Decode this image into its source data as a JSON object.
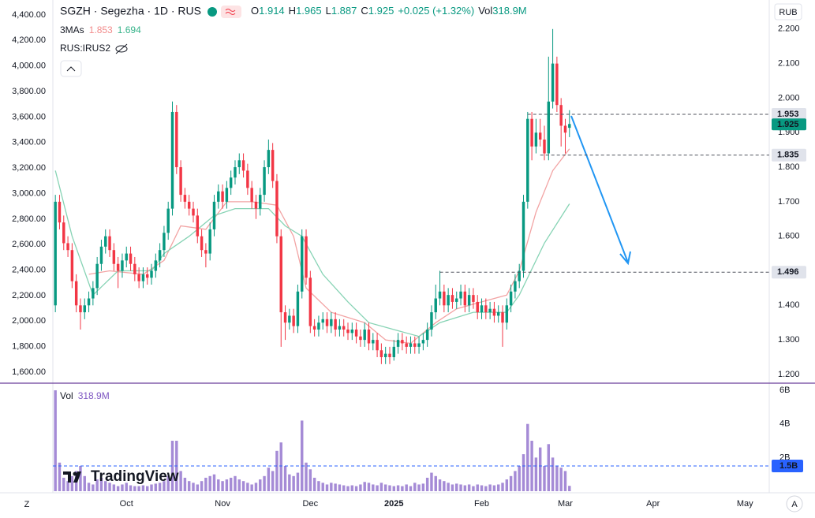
{
  "chart_data": {
    "type": "candlestick",
    "header": {
      "symbol": "SGZH · Segezha · 1D · RUS",
      "o": "O",
      "h": "H",
      "l": "L",
      "c": "C",
      "change": "+0.025 (+1.32%)",
      "vol": "Vol",
      "vol_value": "318.9M"
    },
    "indicators": {
      "ma_name": "3MAs",
      "compare": "RUS:IRUS2",
      "volume_name": "Vol",
      "volume_value": "318.9M"
    },
    "ui": {
      "currency": "RUB",
      "log": "Z",
      "auto": "A",
      "watermark": "TradingView"
    },
    "colors": {
      "up": "#089981",
      "down": "#f23645",
      "volume": "#a58bd6"
    },
    "grid": false,
    "xlim": [
      -0.6,
      170.8
    ],
    "xticks": [
      {
        "value": 17,
        "label": "Oct"
      },
      {
        "value": 40,
        "label": "Nov"
      },
      {
        "value": 61,
        "label": "Dec"
      },
      {
        "value": 81,
        "label": "2025"
      },
      {
        "value": 102,
        "label": "Feb"
      },
      {
        "value": 122,
        "label": "Mar"
      },
      {
        "value": 143,
        "label": "Apr"
      },
      {
        "value": 165,
        "label": "May"
      }
    ],
    "ylim": [
      1.177,
      2.284
    ],
    "yticks": [
      {
        "value": 2.2,
        "label": "2.200"
      },
      {
        "value": 2.1,
        "label": "2.100"
      },
      {
        "value": 2.0,
        "label": "2.000"
      },
      {
        "value": 1.9,
        "label": "1.900"
      },
      {
        "value": 1.8,
        "label": "1.800"
      },
      {
        "value": 1.7,
        "label": "1.700"
      },
      {
        "value": 1.6,
        "label": "1.600"
      },
      {
        "value": 1.5,
        "label": "1.500"
      },
      {
        "value": 1.4,
        "label": "1.400"
      },
      {
        "value": 1.3,
        "label": "1.300"
      },
      {
        "value": 1.2,
        "label": "1.200"
      }
    ],
    "y2lim": [
      1520,
      4517
    ],
    "y2ticks": [
      {
        "value": 4400,
        "label": "4,400.00"
      },
      {
        "value": 4200,
        "label": "4,200.00"
      },
      {
        "value": 4000,
        "label": "4,000.00"
      },
      {
        "value": 3800,
        "label": "3,800.00"
      },
      {
        "value": 3600,
        "label": "3,600.00"
      },
      {
        "value": 3400,
        "label": "3,400.00"
      },
      {
        "value": 3200,
        "label": "3,200.00"
      },
      {
        "value": 3000,
        "label": "3,000.00"
      },
      {
        "value": 2800,
        "label": "2,800.00"
      },
      {
        "value": 2600,
        "label": "2,600.00"
      },
      {
        "value": 2400,
        "label": "2,400.00"
      },
      {
        "value": 2200,
        "label": "2,200.00"
      },
      {
        "value": 2000,
        "label": "2,000.00"
      },
      {
        "value": 1800,
        "label": "1,800.00"
      },
      {
        "value": 1600,
        "label": "1,600.00"
      }
    ],
    "volume_ylim": [
      0,
      6330
    ],
    "volume_ticks": [
      {
        "value": 6000,
        "label": "6B"
      },
      {
        "value": 4000,
        "label": "4B"
      },
      {
        "value": 2000,
        "label": "2B"
      }
    ],
    "volume_level": {
      "value": 1500,
      "label": "1.5B"
    },
    "levels": [
      1.953,
      1.835,
      1.496
    ],
    "open": [
      1.4,
      1.7,
      1.64,
      1.58,
      1.56,
      1.47,
      1.4,
      1.38,
      1.4,
      1.42,
      1.45,
      1.52,
      1.57,
      1.6,
      1.56,
      1.52,
      1.5,
      1.53,
      1.55,
      1.52,
      1.49,
      1.47,
      1.49,
      1.48,
      1.5,
      1.53,
      1.56,
      1.61,
      1.68,
      1.96,
      1.8,
      1.72,
      1.7,
      1.68,
      1.66,
      1.6,
      1.56,
      1.55,
      1.62,
      1.7,
      1.73,
      1.7,
      1.74,
      1.77,
      1.8,
      1.82,
      1.79,
      1.74,
      1.7,
      1.68,
      1.72,
      1.8,
      1.85,
      1.76,
      1.6,
      1.38,
      1.35,
      1.37,
      1.34,
      1.44,
      1.6,
      1.48,
      1.34,
      1.33,
      1.35,
      1.36,
      1.34,
      1.36,
      1.33,
      1.34,
      1.33,
      1.32,
      1.33,
      1.31,
      1.3,
      1.33,
      1.29,
      1.3,
      1.27,
      1.25,
      1.26,
      1.25,
      1.28,
      1.3,
      1.29,
      1.28,
      1.29,
      1.28,
      1.29,
      1.3,
      1.33,
      1.38,
      1.42,
      1.44,
      1.4,
      1.43,
      1.41,
      1.42,
      1.44,
      1.4,
      1.43,
      1.41,
      1.38,
      1.4,
      1.38,
      1.39,
      1.37,
      1.38,
      1.35,
      1.4,
      1.44,
      1.47,
      1.5,
      1.7,
      1.94,
      1.86,
      1.9,
      1.88,
      1.84,
      1.99,
      2.1,
      1.98,
      1.92,
      1.914
    ],
    "high": [
      1.72,
      1.72,
      1.66,
      1.6,
      1.58,
      1.49,
      1.42,
      1.42,
      1.44,
      1.47,
      1.54,
      1.59,
      1.62,
      1.62,
      1.58,
      1.54,
      1.55,
      1.57,
      1.57,
      1.54,
      1.51,
      1.51,
      1.51,
      1.52,
      1.55,
      1.58,
      1.63,
      1.7,
      1.99,
      1.98,
      1.82,
      1.74,
      1.72,
      1.7,
      1.68,
      1.62,
      1.58,
      1.64,
      1.72,
      1.75,
      1.75,
      1.76,
      1.79,
      1.82,
      1.84,
      1.84,
      1.81,
      1.76,
      1.72,
      1.74,
      1.82,
      1.88,
      1.87,
      1.78,
      1.62,
      1.4,
      1.39,
      1.39,
      1.46,
      1.62,
      1.62,
      1.5,
      1.36,
      1.37,
      1.38,
      1.38,
      1.38,
      1.38,
      1.36,
      1.36,
      1.35,
      1.35,
      1.35,
      1.33,
      1.35,
      1.35,
      1.32,
      1.32,
      1.29,
      1.28,
      1.28,
      1.3,
      1.32,
      1.32,
      1.31,
      1.31,
      1.31,
      1.31,
      1.32,
      1.35,
      1.4,
      1.46,
      1.5,
      1.46,
      1.45,
      1.45,
      1.44,
      1.46,
      1.46,
      1.45,
      1.45,
      1.43,
      1.42,
      1.42,
      1.41,
      1.41,
      1.4,
      1.4,
      1.42,
      1.46,
      1.49,
      1.52,
      1.72,
      1.96,
      1.96,
      1.94,
      1.94,
      1.92,
      2.12,
      2.2,
      2.12,
      2.0,
      1.94,
      1.965
    ],
    "low": [
      1.38,
      1.62,
      1.56,
      1.54,
      1.45,
      1.38,
      1.33,
      1.36,
      1.38,
      1.4,
      1.43,
      1.5,
      1.55,
      1.54,
      1.5,
      1.45,
      1.48,
      1.51,
      1.5,
      1.47,
      1.45,
      1.45,
      1.46,
      1.46,
      1.48,
      1.51,
      1.54,
      1.59,
      1.66,
      1.78,
      1.7,
      1.68,
      1.66,
      1.64,
      1.58,
      1.54,
      1.51,
      1.53,
      1.6,
      1.68,
      1.68,
      1.68,
      1.72,
      1.75,
      1.78,
      1.77,
      1.72,
      1.68,
      1.65,
      1.66,
      1.7,
      1.78,
      1.74,
      1.58,
      1.28,
      1.3,
      1.33,
      1.32,
      1.32,
      1.42,
      1.46,
      1.32,
      1.31,
      1.31,
      1.33,
      1.32,
      1.32,
      1.31,
      1.31,
      1.31,
      1.3,
      1.3,
      1.29,
      1.28,
      1.28,
      1.27,
      1.27,
      1.25,
      1.23,
      1.23,
      1.23,
      1.24,
      1.26,
      1.27,
      1.26,
      1.26,
      1.26,
      1.26,
      1.27,
      1.28,
      1.31,
      1.36,
      1.4,
      1.38,
      1.38,
      1.39,
      1.39,
      1.4,
      1.38,
      1.38,
      1.39,
      1.36,
      1.36,
      1.36,
      1.36,
      1.35,
      1.35,
      1.28,
      1.33,
      1.38,
      1.42,
      1.45,
      1.48,
      1.68,
      1.82,
      1.84,
      1.86,
      1.82,
      1.82,
      1.97,
      1.96,
      1.86,
      1.84,
      1.887
    ],
    "close": [
      1.7,
      1.64,
      1.58,
      1.56,
      1.47,
      1.4,
      1.38,
      1.4,
      1.42,
      1.45,
      1.52,
      1.57,
      1.6,
      1.56,
      1.52,
      1.5,
      1.53,
      1.55,
      1.52,
      1.49,
      1.47,
      1.49,
      1.48,
      1.5,
      1.53,
      1.56,
      1.61,
      1.68,
      1.96,
      1.8,
      1.72,
      1.7,
      1.68,
      1.66,
      1.6,
      1.56,
      1.55,
      1.62,
      1.7,
      1.73,
      1.7,
      1.74,
      1.77,
      1.8,
      1.82,
      1.79,
      1.74,
      1.7,
      1.68,
      1.72,
      1.8,
      1.85,
      1.76,
      1.6,
      1.38,
      1.35,
      1.37,
      1.34,
      1.44,
      1.6,
      1.48,
      1.34,
      1.33,
      1.35,
      1.36,
      1.34,
      1.36,
      1.33,
      1.34,
      1.33,
      1.32,
      1.33,
      1.31,
      1.3,
      1.33,
      1.29,
      1.3,
      1.27,
      1.25,
      1.26,
      1.25,
      1.28,
      1.3,
      1.29,
      1.28,
      1.29,
      1.28,
      1.29,
      1.3,
      1.33,
      1.38,
      1.42,
      1.44,
      1.4,
      1.43,
      1.41,
      1.42,
      1.44,
      1.4,
      1.43,
      1.41,
      1.38,
      1.4,
      1.38,
      1.39,
      1.37,
      1.38,
      1.35,
      1.4,
      1.44,
      1.47,
      1.5,
      1.7,
      1.94,
      1.86,
      1.9,
      1.88,
      1.84,
      1.99,
      2.1,
      1.98,
      1.92,
      1.9,
      1.925
    ],
    "volume": [
      6000,
      1700,
      800,
      600,
      900,
      1200,
      1500,
      900,
      500,
      400,
      700,
      800,
      600,
      500,
      400,
      300,
      400,
      500,
      350,
      300,
      300,
      350,
      300,
      400,
      450,
      500,
      600,
      900,
      3000,
      3000,
      1200,
      800,
      600,
      500,
      400,
      600,
      800,
      900,
      1000,
      700,
      600,
      700,
      800,
      900,
      700,
      600,
      500,
      400,
      500,
      700,
      900,
      1400,
      1200,
      2400,
      2900,
      1500,
      1000,
      900,
      1100,
      4200,
      1700,
      1300,
      800,
      600,
      500,
      400,
      500,
      450,
      400,
      350,
      300,
      350,
      300,
      400,
      550,
      500,
      400,
      350,
      500,
      400,
      350,
      300,
      350,
      300,
      400,
      300,
      500,
      400,
      450,
      800,
      1100,
      900,
      700,
      600,
      500,
      400,
      450,
      400,
      350,
      400,
      300,
      400,
      350,
      300,
      400,
      350,
      400,
      500,
      700,
      900,
      1200,
      1500,
      2200,
      4000,
      3000,
      2000,
      2600,
      1500,
      2800,
      2000,
      1500,
      1400,
      1200,
      318.9
    ],
    "ma_lines": [
      {
        "color": "#f2a3a3",
        "x": [
          8,
          13,
          21,
          26,
          30,
          36,
          41,
          47,
          53,
          57,
          60,
          66,
          74,
          79,
          85,
          91,
          96,
          102,
          108,
          111,
          115,
          119,
          123
        ],
        "values": [
          1.49,
          1.5,
          1.49,
          1.53,
          1.63,
          1.62,
          1.7,
          1.7,
          1.69,
          1.6,
          1.45,
          1.38,
          1.35,
          1.3,
          1.29,
          1.35,
          1.39,
          1.41,
          1.43,
          1.5,
          1.67,
          1.79,
          1.853
        ]
      },
      {
        "color": "#86d3b4",
        "x": [
          0,
          4,
          9,
          15,
          23,
          26,
          32,
          38,
          43,
          51,
          55,
          59,
          64,
          70,
          75,
          81,
          87,
          92,
          100,
          108,
          111,
          117,
          123
        ],
        "values": [
          1.79,
          1.6,
          1.43,
          1.5,
          1.5,
          1.55,
          1.6,
          1.66,
          1.68,
          1.68,
          1.63,
          1.6,
          1.49,
          1.41,
          1.35,
          1.33,
          1.31,
          1.35,
          1.38,
          1.38,
          1.43,
          1.58,
          1.694
        ]
      }
    ]
  }
}
